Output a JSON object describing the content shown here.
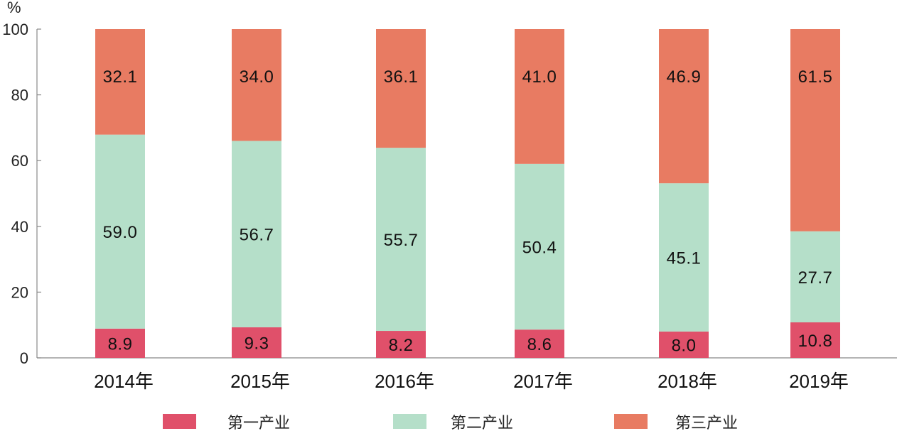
{
  "chart_data": {
    "type": "bar",
    "stacked": true,
    "percent_stacked": true,
    "unit": "%",
    "ylim": [
      0,
      100
    ],
    "yticks": [
      0,
      20,
      40,
      60,
      80,
      100
    ],
    "categories": [
      "2014年",
      "2015年",
      "2016年",
      "2017年",
      "2018年",
      "2019年"
    ],
    "series": [
      {
        "name": "第一产业",
        "color": "#e0506a",
        "values": [
          8.9,
          9.3,
          8.2,
          8.6,
          8.0,
          10.8
        ]
      },
      {
        "name": "第二产业",
        "color": "#b5dfc9",
        "values": [
          59.0,
          56.7,
          55.7,
          50.4,
          45.1,
          27.7
        ]
      },
      {
        "name": "第三产业",
        "color": "#e87b62",
        "values": [
          32.1,
          34.0,
          36.1,
          41.0,
          46.9,
          61.5
        ]
      }
    ],
    "legend_position": "bottom"
  }
}
